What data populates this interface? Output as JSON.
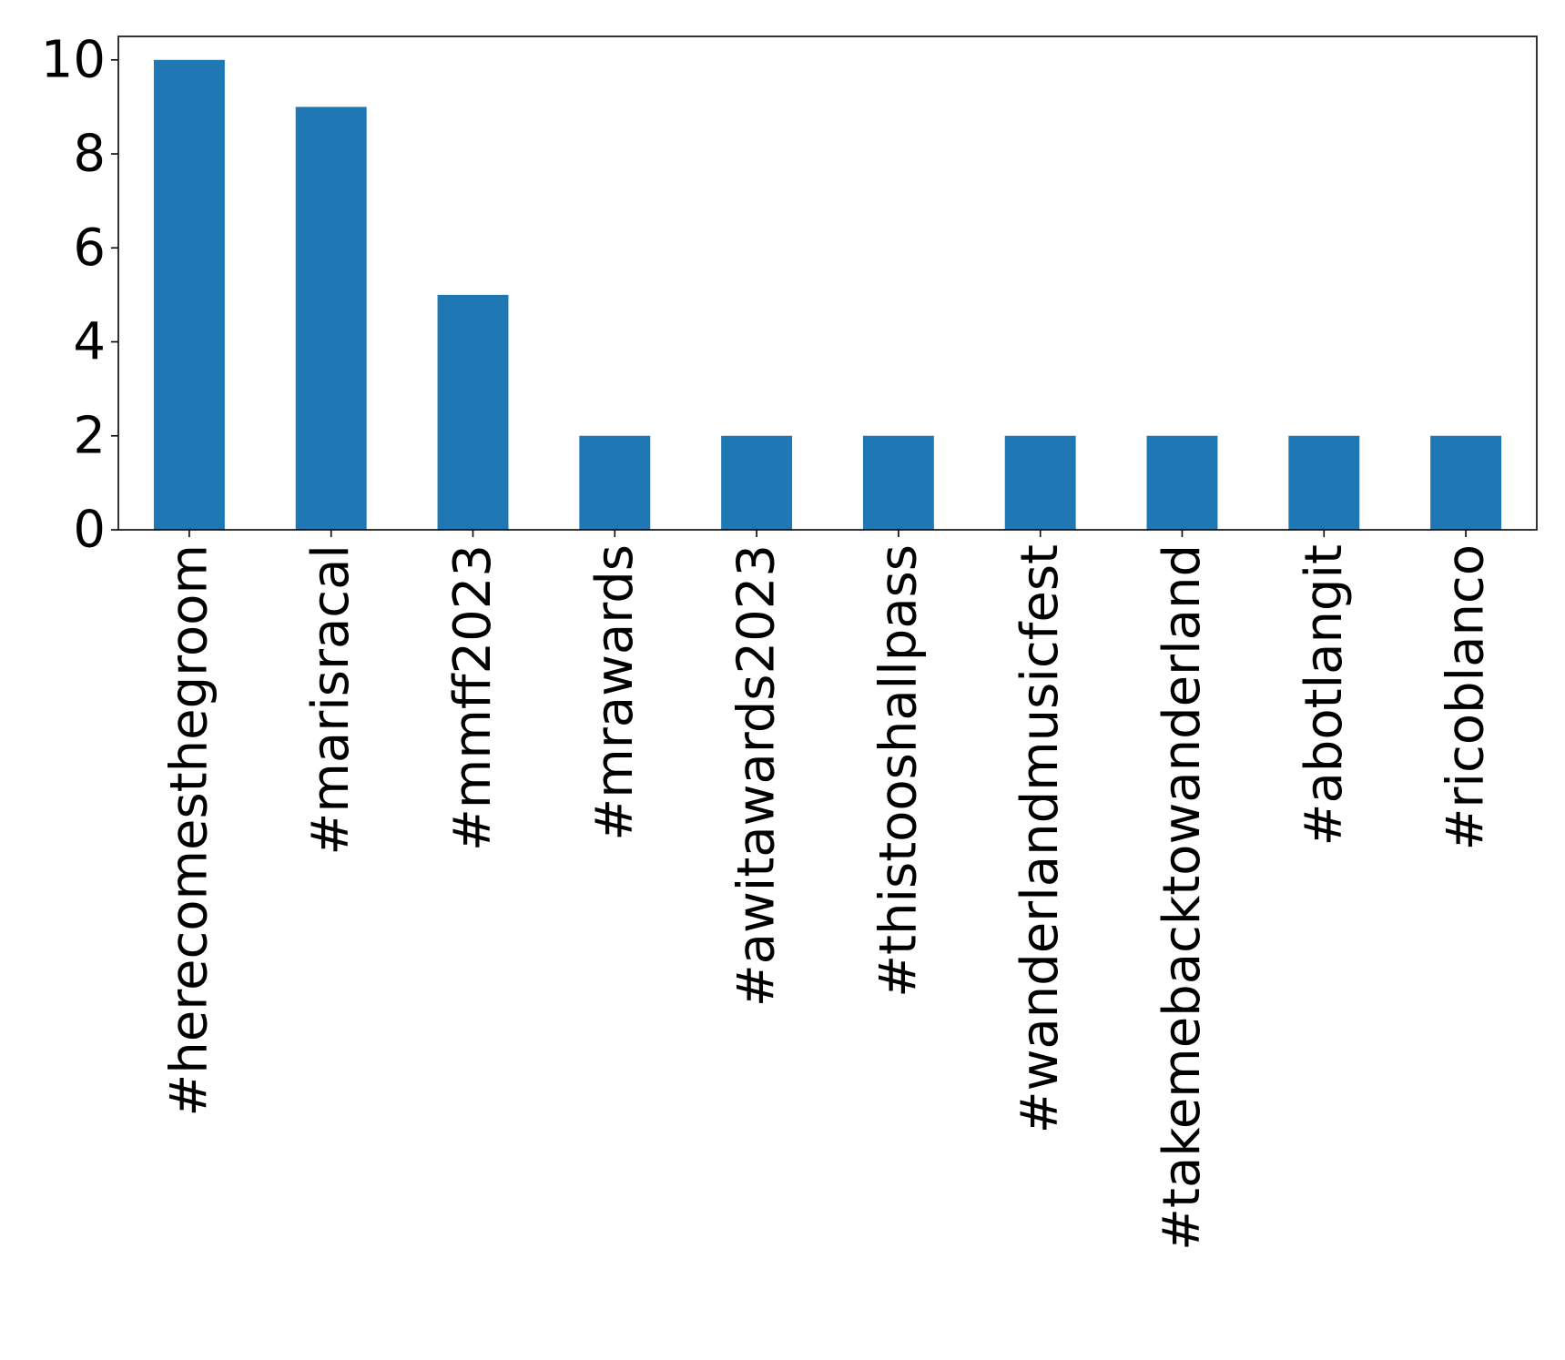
{
  "chart_data": {
    "type": "bar",
    "categories": [
      "#herecomesthegroom",
      "#marisracal",
      "#mmff2023",
      "#mrawards",
      "#awitawards2023",
      "#thistooshallpass",
      "#wanderlandmusicfest",
      "#takemebacktowanderland",
      "#abotlangit",
      "#ricoblanco"
    ],
    "values": [
      10,
      9,
      5,
      2,
      2,
      2,
      2,
      2,
      2,
      2
    ],
    "title": "",
    "xlabel": "",
    "ylabel": "",
    "ylim": [
      0,
      10.5
    ],
    "yticks": [
      0,
      2,
      4,
      6,
      8,
      10
    ],
    "xtick_rotation": -90,
    "grid": false,
    "legend": null,
    "bar_color": "#1f77b4"
  }
}
